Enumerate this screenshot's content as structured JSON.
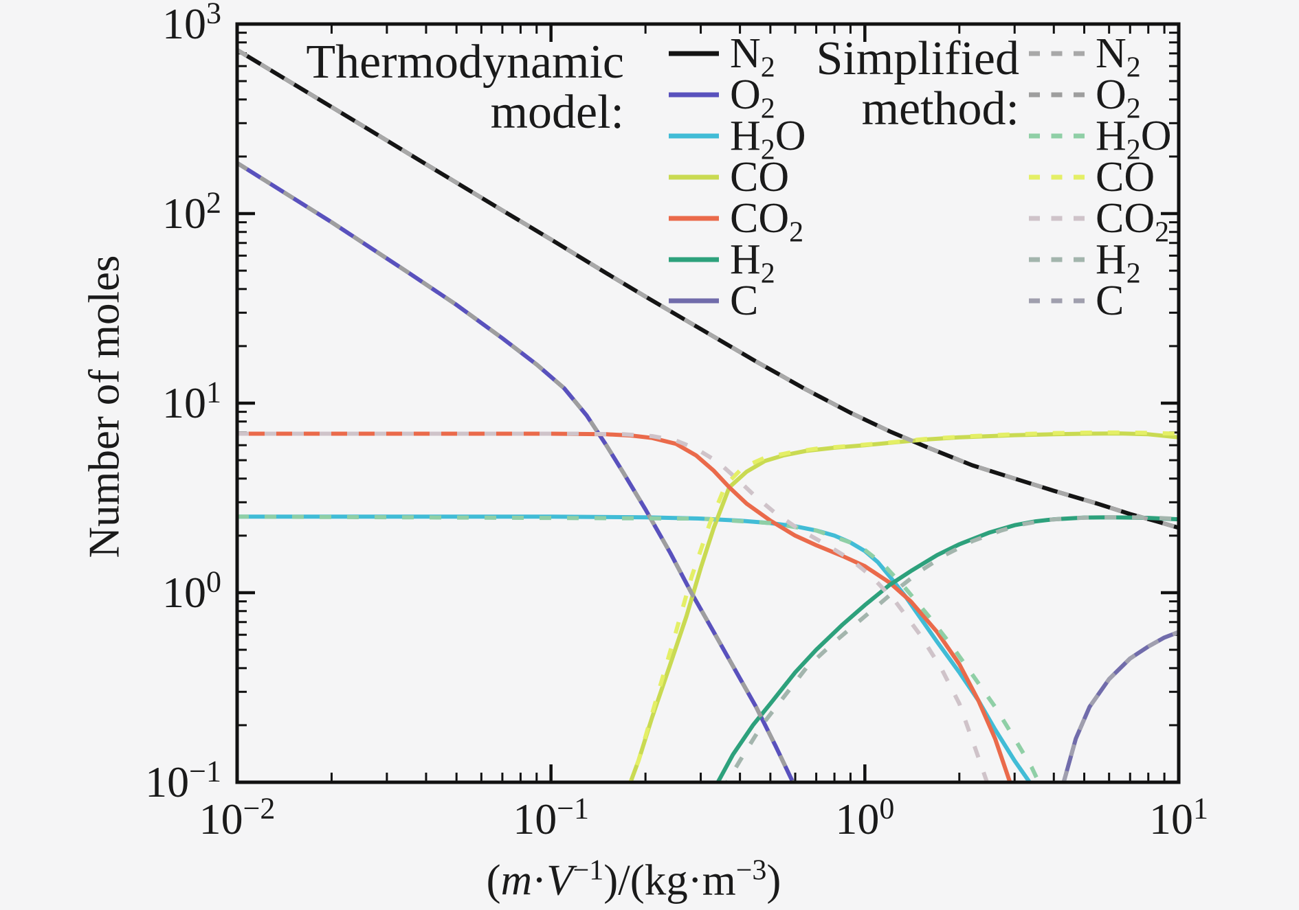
{
  "figure": {
    "background": "#f5f5f6",
    "frame_color": "#111111",
    "text_color": "#1a1a1a"
  },
  "chart_data": {
    "type": "line",
    "title": "",
    "x_axis": {
      "label": "(m·V⁻¹)/(kg·m⁻³)",
      "label_parts": [
        {
          "t": "("
        },
        {
          "t": "m",
          "i": 1
        },
        {
          "t": "·"
        },
        {
          "t": "V",
          "i": 1
        },
        {
          "t": "−1",
          "sup": 1
        },
        {
          "t": ")/(kg·m"
        },
        {
          "t": "−3",
          "sup": 1
        },
        {
          "t": ")"
        }
      ],
      "scale": "log",
      "range": [
        0.01,
        10
      ],
      "ticks": [
        {
          "v": 0.01,
          "base": "10",
          "exp": "−2"
        },
        {
          "v": 0.1,
          "base": "10",
          "exp": "−1"
        },
        {
          "v": 1,
          "base": "10",
          "exp": "0"
        },
        {
          "v": 10,
          "base": "10",
          "exp": "1"
        }
      ]
    },
    "y_axis": {
      "label": "Number of moles",
      "scale": "log",
      "range": [
        0.1,
        1000
      ],
      "ticks": [
        {
          "v": 1000,
          "base": "10",
          "exp": "3"
        },
        {
          "v": 100,
          "base": "10",
          "exp": "2"
        },
        {
          "v": 10,
          "base": "10",
          "exp": "1"
        },
        {
          "v": 1,
          "base": "10",
          "exp": "0"
        },
        {
          "v": 0.1,
          "base": "10",
          "exp": "−1"
        }
      ]
    },
    "legend": {
      "left_title": [
        "Thermodynamic",
        "model:"
      ],
      "right_title": [
        "Simplified",
        "method:"
      ]
    },
    "series": [
      {
        "id": "N2",
        "label": {
          "pre": "N",
          "sub": "2",
          "post": ""
        },
        "color": "#141414",
        "sim_color": "#a8a8a8",
        "model_points": [
          [
            0.01,
            730
          ],
          [
            0.02,
            365
          ],
          [
            0.04,
            182
          ],
          [
            0.07,
            104
          ],
          [
            0.1,
            73
          ],
          [
            0.15,
            48.5
          ],
          [
            0.2,
            36.5
          ],
          [
            0.3,
            24.6
          ],
          [
            0.45,
            16.6
          ],
          [
            0.65,
            11.8
          ],
          [
            0.9,
            8.9
          ],
          [
            1.2,
            7.1
          ],
          [
            1.6,
            5.8
          ],
          [
            2.2,
            4.7
          ],
          [
            3.0,
            4.0
          ],
          [
            4.0,
            3.45
          ],
          [
            5.5,
            2.95
          ],
          [
            7.0,
            2.6
          ],
          [
            8.5,
            2.38
          ],
          [
            10,
            2.2
          ]
        ],
        "simplified_points": [
          [
            0.01,
            730
          ],
          [
            0.02,
            365
          ],
          [
            0.04,
            182
          ],
          [
            0.07,
            104
          ],
          [
            0.1,
            73
          ],
          [
            0.15,
            48.5
          ],
          [
            0.2,
            36.5
          ],
          [
            0.3,
            24.6
          ],
          [
            0.45,
            16.6
          ],
          [
            0.65,
            11.8
          ],
          [
            0.9,
            8.9
          ],
          [
            1.2,
            7.1
          ],
          [
            1.6,
            5.8
          ],
          [
            2.2,
            4.7
          ],
          [
            3.0,
            4.0
          ],
          [
            4.0,
            3.45
          ],
          [
            5.5,
            2.95
          ],
          [
            7.0,
            2.6
          ],
          [
            8.5,
            2.38
          ],
          [
            10,
            2.2
          ]
        ]
      },
      {
        "id": "O2",
        "label": {
          "pre": "O",
          "sub": "2",
          "post": ""
        },
        "color": "#5951bd",
        "sim_color": "#9e9e9e",
        "model_points": [
          [
            0.01,
            185
          ],
          [
            0.02,
            90
          ],
          [
            0.035,
            49
          ],
          [
            0.05,
            33
          ],
          [
            0.07,
            22
          ],
          [
            0.09,
            16
          ],
          [
            0.11,
            12
          ],
          [
            0.13,
            8.6
          ],
          [
            0.15,
            6.0
          ],
          [
            0.17,
            4.3
          ],
          [
            0.2,
            2.75
          ],
          [
            0.24,
            1.62
          ],
          [
            0.28,
            1.0
          ],
          [
            0.33,
            0.62
          ],
          [
            0.39,
            0.38
          ],
          [
            0.45,
            0.25
          ],
          [
            0.52,
            0.155
          ],
          [
            0.59,
            0.1
          ],
          [
            0.62,
            0.078
          ]
        ],
        "simplified_points": [
          [
            0.01,
            185
          ],
          [
            0.02,
            90
          ],
          [
            0.035,
            49
          ],
          [
            0.05,
            33
          ],
          [
            0.07,
            22
          ],
          [
            0.09,
            16
          ],
          [
            0.11,
            12
          ],
          [
            0.13,
            8.6
          ],
          [
            0.15,
            6.0
          ],
          [
            0.17,
            4.3
          ],
          [
            0.2,
            2.75
          ],
          [
            0.24,
            1.62
          ],
          [
            0.28,
            1.0
          ],
          [
            0.33,
            0.62
          ],
          [
            0.39,
            0.38
          ],
          [
            0.45,
            0.25
          ],
          [
            0.52,
            0.155
          ],
          [
            0.59,
            0.1
          ],
          [
            0.62,
            0.078
          ]
        ]
      },
      {
        "id": "H2O",
        "label": {
          "pre": "H",
          "sub": "2",
          "post": "O"
        },
        "color": "#41bcd6",
        "sim_color": "#8fcfa6",
        "model_points": [
          [
            0.01,
            2.52
          ],
          [
            0.1,
            2.52
          ],
          [
            0.2,
            2.5
          ],
          [
            0.3,
            2.46
          ],
          [
            0.4,
            2.4
          ],
          [
            0.5,
            2.33
          ],
          [
            0.6,
            2.24
          ],
          [
            0.7,
            2.13
          ],
          [
            0.8,
            2.0
          ],
          [
            0.9,
            1.84
          ],
          [
            1.0,
            1.66
          ],
          [
            1.1,
            1.45
          ],
          [
            1.2,
            1.22
          ],
          [
            1.35,
            0.95
          ],
          [
            1.5,
            0.74
          ],
          [
            1.7,
            0.55
          ],
          [
            2.0,
            0.38
          ],
          [
            2.3,
            0.27
          ],
          [
            2.6,
            0.19
          ],
          [
            3.0,
            0.13
          ],
          [
            3.35,
            0.1
          ],
          [
            3.5,
            0.082
          ]
        ],
        "simplified_points": [
          [
            0.01,
            2.52
          ],
          [
            0.3,
            2.46
          ],
          [
            0.5,
            2.33
          ],
          [
            0.7,
            2.13
          ],
          [
            0.9,
            1.84
          ],
          [
            1.0,
            1.68
          ],
          [
            1.15,
            1.4
          ],
          [
            1.35,
            1.05
          ],
          [
            1.6,
            0.75
          ],
          [
            1.9,
            0.52
          ],
          [
            2.2,
            0.37
          ],
          [
            2.6,
            0.25
          ],
          [
            3.0,
            0.17
          ],
          [
            3.4,
            0.12
          ],
          [
            3.75,
            0.085
          ]
        ]
      },
      {
        "id": "CO",
        "label": {
          "pre": "CO",
          "sub": "",
          "post": ""
        },
        "color": "#c9da52",
        "sim_color": "#e4ef66",
        "model_points": [
          [
            0.175,
            0.09
          ],
          [
            0.19,
            0.13
          ],
          [
            0.21,
            0.22
          ],
          [
            0.24,
            0.42
          ],
          [
            0.27,
            0.75
          ],
          [
            0.3,
            1.35
          ],
          [
            0.33,
            2.2
          ],
          [
            0.37,
            3.6
          ],
          [
            0.42,
            4.35
          ],
          [
            0.48,
            4.95
          ],
          [
            0.55,
            5.3
          ],
          [
            0.65,
            5.6
          ],
          [
            0.8,
            5.82
          ],
          [
            1.0,
            6.0
          ],
          [
            1.3,
            6.25
          ],
          [
            1.6,
            6.45
          ],
          [
            2.0,
            6.6
          ],
          [
            3.0,
            6.78
          ],
          [
            4.0,
            6.85
          ],
          [
            5.0,
            6.9
          ],
          [
            6.5,
            6.92
          ],
          [
            8.0,
            6.85
          ],
          [
            10,
            6.6
          ]
        ],
        "simplified_points": [
          [
            0.175,
            0.09
          ],
          [
            0.19,
            0.13
          ],
          [
            0.22,
            0.3
          ],
          [
            0.25,
            0.62
          ],
          [
            0.28,
            1.2
          ],
          [
            0.32,
            2.3
          ],
          [
            0.36,
            3.7
          ],
          [
            0.41,
            4.6
          ],
          [
            0.48,
            5.15
          ],
          [
            0.58,
            5.5
          ],
          [
            0.7,
            5.75
          ],
          [
            0.9,
            5.95
          ],
          [
            1.2,
            6.2
          ],
          [
            1.6,
            6.5
          ],
          [
            2.2,
            6.7
          ],
          [
            3.0,
            6.85
          ],
          [
            4.0,
            6.95
          ],
          [
            5.5,
            7.0
          ],
          [
            7.0,
            7.0
          ],
          [
            8.5,
            6.95
          ],
          [
            10,
            6.9
          ]
        ]
      },
      {
        "id": "CO2",
        "label": {
          "pre": "CO",
          "sub": "2",
          "post": ""
        },
        "color": "#ea6a4b",
        "sim_color": "#cfc3c9",
        "model_points": [
          [
            0.01,
            6.9
          ],
          [
            0.1,
            6.9
          ],
          [
            0.15,
            6.85
          ],
          [
            0.18,
            6.75
          ],
          [
            0.21,
            6.55
          ],
          [
            0.25,
            6.1
          ],
          [
            0.29,
            5.3
          ],
          [
            0.33,
            4.4
          ],
          [
            0.37,
            3.6
          ],
          [
            0.42,
            2.95
          ],
          [
            0.5,
            2.4
          ],
          [
            0.6,
            2.0
          ],
          [
            0.7,
            1.78
          ],
          [
            0.85,
            1.56
          ],
          [
            1.0,
            1.38
          ],
          [
            1.2,
            1.13
          ],
          [
            1.4,
            0.9
          ],
          [
            1.7,
            0.62
          ],
          [
            2.0,
            0.42
          ],
          [
            2.3,
            0.27
          ],
          [
            2.6,
            0.17
          ],
          [
            2.9,
            0.1
          ],
          [
            3.0,
            0.082
          ]
        ],
        "simplified_points": [
          [
            0.01,
            6.9
          ],
          [
            0.12,
            6.9
          ],
          [
            0.17,
            6.85
          ],
          [
            0.21,
            6.7
          ],
          [
            0.25,
            6.35
          ],
          [
            0.29,
            5.75
          ],
          [
            0.34,
            4.9
          ],
          [
            0.39,
            4.0
          ],
          [
            0.45,
            3.2
          ],
          [
            0.52,
            2.62
          ],
          [
            0.62,
            2.15
          ],
          [
            0.75,
            1.8
          ],
          [
            0.9,
            1.5
          ],
          [
            1.05,
            1.22
          ],
          [
            1.25,
            0.9
          ],
          [
            1.5,
            0.6
          ],
          [
            1.75,
            0.4
          ],
          [
            2.0,
            0.26
          ],
          [
            2.25,
            0.15
          ],
          [
            2.45,
            0.1
          ],
          [
            2.55,
            0.078
          ]
        ]
      },
      {
        "id": "H2",
        "label": {
          "pre": "H",
          "sub": "2",
          "post": ""
        },
        "color": "#2da17c",
        "sim_color": "#a3b5ad",
        "model_points": [
          [
            0.34,
            0.1
          ],
          [
            0.38,
            0.14
          ],
          [
            0.44,
            0.2
          ],
          [
            0.5,
            0.26
          ],
          [
            0.6,
            0.38
          ],
          [
            0.7,
            0.5
          ],
          [
            0.85,
            0.68
          ],
          [
            1.0,
            0.86
          ],
          [
            1.2,
            1.1
          ],
          [
            1.4,
            1.3
          ],
          [
            1.7,
            1.58
          ],
          [
            2.0,
            1.8
          ],
          [
            2.5,
            2.08
          ],
          [
            3.0,
            2.27
          ],
          [
            3.5,
            2.38
          ],
          [
            4.0,
            2.44
          ],
          [
            5.0,
            2.49
          ],
          [
            6.0,
            2.5
          ],
          [
            8.0,
            2.48
          ],
          [
            10,
            2.44
          ]
        ],
        "simplified_points": [
          [
            0.35,
            0.09
          ],
          [
            0.4,
            0.13
          ],
          [
            0.47,
            0.2
          ],
          [
            0.55,
            0.28
          ],
          [
            0.65,
            0.4
          ],
          [
            0.8,
            0.55
          ],
          [
            1.0,
            0.75
          ],
          [
            1.2,
            0.97
          ],
          [
            1.5,
            1.3
          ],
          [
            1.8,
            1.58
          ],
          [
            2.2,
            1.87
          ],
          [
            2.7,
            2.12
          ],
          [
            3.2,
            2.3
          ],
          [
            3.8,
            2.42
          ],
          [
            4.5,
            2.47
          ],
          [
            5.5,
            2.5
          ],
          [
            7.0,
            2.5
          ],
          [
            8.5,
            2.48
          ],
          [
            10,
            2.45
          ]
        ]
      },
      {
        "id": "C",
        "label": {
          "pre": "C",
          "sub": "",
          "post": ""
        },
        "color": "#716cab",
        "sim_color": "#a09fae",
        "model_points": [
          [
            4.3,
            0.1
          ],
          [
            4.7,
            0.17
          ],
          [
            5.2,
            0.25
          ],
          [
            6.0,
            0.35
          ],
          [
            7.0,
            0.45
          ],
          [
            8.0,
            0.52
          ],
          [
            9.0,
            0.58
          ],
          [
            10,
            0.62
          ]
        ],
        "simplified_points": [
          [
            4.3,
            0.1
          ],
          [
            4.7,
            0.17
          ],
          [
            5.2,
            0.25
          ],
          [
            6.0,
            0.35
          ],
          [
            7.0,
            0.45
          ],
          [
            8.0,
            0.52
          ],
          [
            9.0,
            0.58
          ],
          [
            10,
            0.62
          ]
        ]
      }
    ]
  }
}
